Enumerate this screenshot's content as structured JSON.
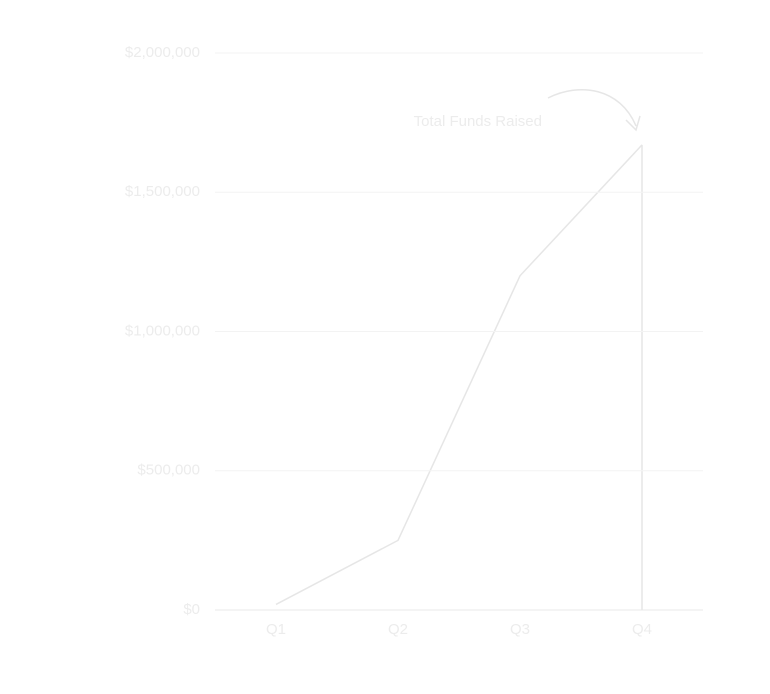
{
  "chart_data": {
    "type": "line",
    "annotation": "Total Funds Raised",
    "categories": [
      "Q1",
      "Q2",
      "Q3",
      "Q4"
    ],
    "values": [
      20000,
      250000,
      1200000,
      1670000
    ],
    "color": "#e6e6e6",
    "ylim": [
      0,
      2000000
    ],
    "yticks": [
      {
        "value": 0,
        "label": "$0"
      },
      {
        "value": 500000,
        "label": "$500,000"
      },
      {
        "value": 1000000,
        "label": "$1,000,000"
      },
      {
        "value": 1500000,
        "label": "$1,500,000"
      },
      {
        "value": 2000000,
        "label": "$2,000,000"
      }
    ],
    "grid": true
  }
}
